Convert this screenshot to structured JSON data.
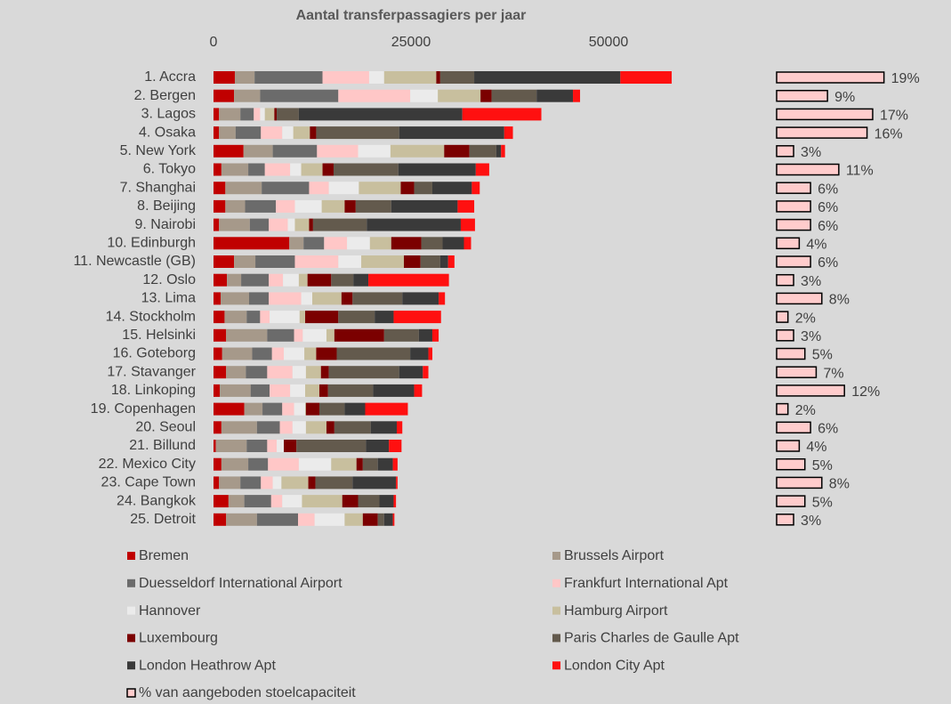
{
  "chart_data": {
    "type": "stacked_barh",
    "title": "Aantal transferpassagiers per jaar",
    "categories": [
      "1. Accra",
      "2. Bergen",
      "3. Lagos",
      "4. Osaka",
      "5. New York",
      "6. Tokyo",
      "7. Shanghai",
      "8. Beijing",
      "9. Nairobi",
      "10. Edinburgh",
      "11. Newcastle (GB)",
      "12. Oslo",
      "13. Lima",
      "14. Stockholm",
      "15. Helsinki",
      "16. Goteborg",
      "17. Stavanger",
      "18. Linkoping",
      "19. Copenhagen",
      "20. Seoul",
      "21. Billund",
      "22. Mexico City",
      "23. Cape Town",
      "24. Bangkok",
      "25. Detroit"
    ],
    "xlim": [
      0,
      60000
    ],
    "xticks": [
      0,
      25000,
      50000
    ],
    "series": [
      {
        "name": "Bremen",
        "color": "#c00000",
        "values": [
          2700,
          2600,
          700,
          700,
          3800,
          1000,
          1500,
          1500,
          700,
          9600,
          2600,
          1700,
          900,
          1400,
          1600,
          1100,
          1600,
          800,
          3900,
          1000,
          300,
          1000,
          700,
          1900,
          1600
        ]
      },
      {
        "name": "Brussels Airport",
        "color": "#a6998a",
        "values": [
          2500,
          3300,
          2700,
          2100,
          3700,
          3400,
          4600,
          2500,
          3900,
          1800,
          2700,
          1800,
          3600,
          2800,
          5200,
          3800,
          2500,
          3900,
          2300,
          4500,
          3900,
          3400,
          2700,
          2000,
          3900
        ]
      },
      {
        "name": "Duesseldorf International Airport",
        "color": "#6b6b6b",
        "values": [
          8600,
          9900,
          1700,
          3200,
          5600,
          2100,
          6000,
          3900,
          2400,
          2600,
          5000,
          3500,
          2500,
          1700,
          3400,
          2500,
          2700,
          2400,
          2500,
          2900,
          2600,
          2500,
          2600,
          3400,
          5200
        ]
      },
      {
        "name": "Frankfurt International Apt",
        "color": "#ffc7c7",
        "values": [
          5900,
          9100,
          800,
          2700,
          5200,
          3200,
          2500,
          2400,
          2400,
          2900,
          5500,
          1800,
          4100,
          1200,
          1100,
          1500,
          3200,
          2600,
          1500,
          1600,
          1200,
          3900,
          1500,
          1400,
          2100
        ]
      },
      {
        "name": "Hannover",
        "color": "#ebebeb",
        "values": [
          1900,
          3500,
          600,
          1400,
          4100,
          1400,
          3800,
          3400,
          900,
          2900,
          2900,
          2000,
          1400,
          3800,
          3000,
          2600,
          1700,
          1900,
          1400,
          1700,
          900,
          4100,
          1100,
          2500,
          3800
        ]
      },
      {
        "name": "Hamburg Airport",
        "color": "#c8bf9e",
        "values": [
          6600,
          5400,
          1200,
          2100,
          6800,
          2700,
          5300,
          2900,
          1800,
          2700,
          5400,
          1100,
          3700,
          700,
          1000,
          1500,
          1900,
          1800,
          100,
          2600,
          0,
          3200,
          3400,
          5100,
          2300
        ]
      },
      {
        "name": "Luxembourg",
        "color": "#7b0000",
        "values": [
          500,
          1400,
          300,
          800,
          3200,
          1400,
          1700,
          1400,
          500,
          3800,
          2100,
          3000,
          1400,
          4200,
          6300,
          2600,
          1000,
          1100,
          1700,
          1000,
          1600,
          800,
          900,
          2000,
          1900
        ]
      },
      {
        "name": "Paris Charles de Gaulle Apt",
        "color": "#635a4d",
        "values": [
          4300,
          5700,
          2800,
          10500,
          3400,
          8200,
          2300,
          4500,
          6800,
          2700,
          2500,
          2800,
          6300,
          4600,
          4400,
          9300,
          8900,
          5700,
          3200,
          4600,
          8800,
          1900,
          4700,
          2700,
          800
        ]
      },
      {
        "name": "London Heathrow Apt",
        "color": "#3a3a3a",
        "values": [
          18500,
          4600,
          20700,
          13300,
          600,
          9800,
          5000,
          8400,
          11900,
          2700,
          1000,
          1900,
          4600,
          2400,
          1700,
          2300,
          3000,
          5200,
          2600,
          3300,
          2900,
          1900,
          5500,
          1800,
          1100
        ]
      },
      {
        "name": "London City Apt",
        "color": "#ff1010",
        "values": [
          6500,
          900,
          10000,
          1100,
          500,
          1700,
          1000,
          2100,
          1800,
          900,
          800,
          10200,
          800,
          6000,
          800,
          500,
          700,
          1000,
          5400,
          700,
          1600,
          600,
          200,
          300,
          200
        ]
      }
    ],
    "share": {
      "name": "% van aangeboden stoelcapaciteit",
      "color": "#ffcccc",
      "values": [
        19,
        9,
        17,
        16,
        3,
        11,
        6,
        6,
        6,
        4,
        6,
        3,
        8,
        2,
        3,
        5,
        7,
        12,
        2,
        6,
        4,
        5,
        8,
        5,
        3
      ],
      "value_labels": [
        "19%",
        "9%",
        "17%",
        "16%",
        "3%",
        "11%",
        "6%",
        "6%",
        "6%",
        "4%",
        "6%",
        "3%",
        "8%",
        "2%",
        "3%",
        "5%",
        "7%",
        "12%",
        "2%",
        "6%",
        "4%",
        "5%",
        "8%",
        "5%",
        "3%"
      ]
    }
  }
}
